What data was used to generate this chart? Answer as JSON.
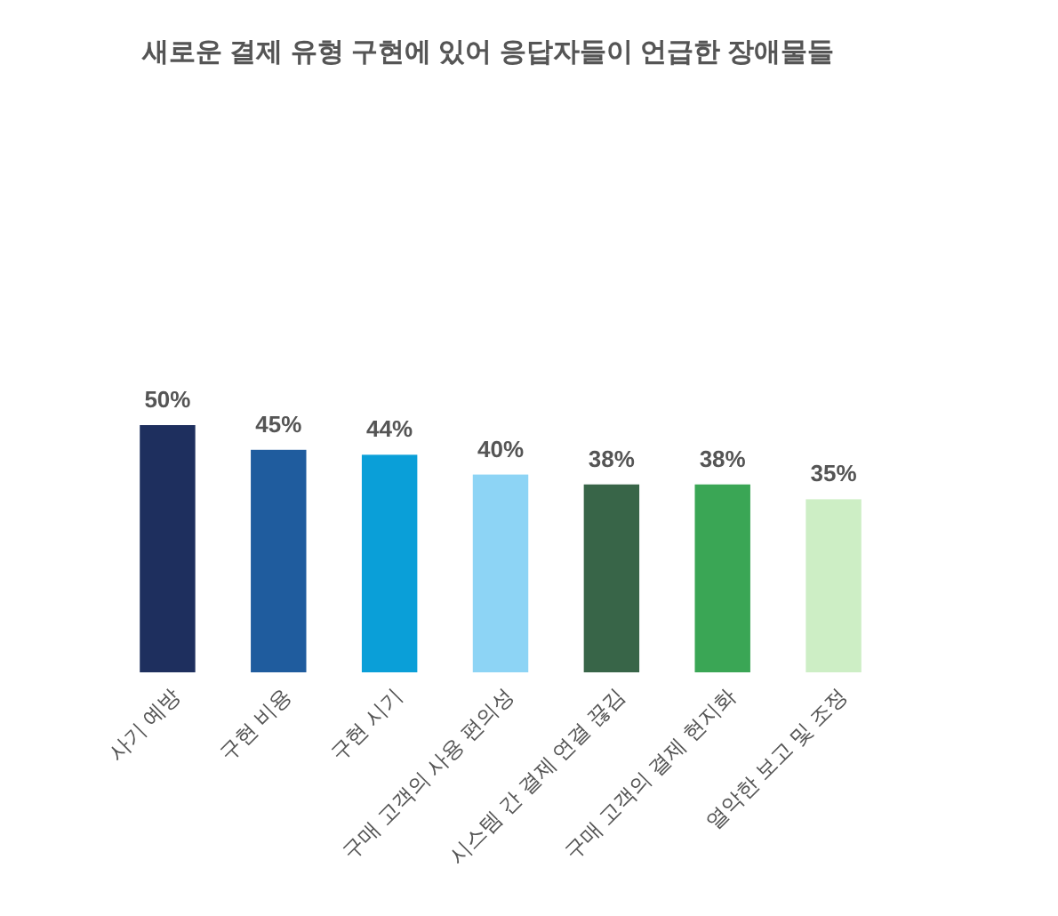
{
  "chart_data": {
    "type": "bar",
    "title": "새로운 결제 유형 구현에 있어 응답자들이 언급한 장애물들",
    "categories": [
      "사기 예방",
      "구현 비용",
      "구현 시기",
      "구매 고객의 사용 편의성",
      "시스템 간 결제 연결 끊김",
      "구매 고객의 결제 현지화",
      "열악한 보고 및 조정"
    ],
    "values": [
      50,
      45,
      44,
      40,
      38,
      38,
      35
    ],
    "value_labels": [
      "50%",
      "45%",
      "44%",
      "40%",
      "38%",
      "38%",
      "35%"
    ],
    "colors": [
      "#1e2f5e",
      "#1f5c9e",
      "#0a9fd8",
      "#8dd4f5",
      "#386548",
      "#3aa655",
      "#cdeec5"
    ]
  }
}
